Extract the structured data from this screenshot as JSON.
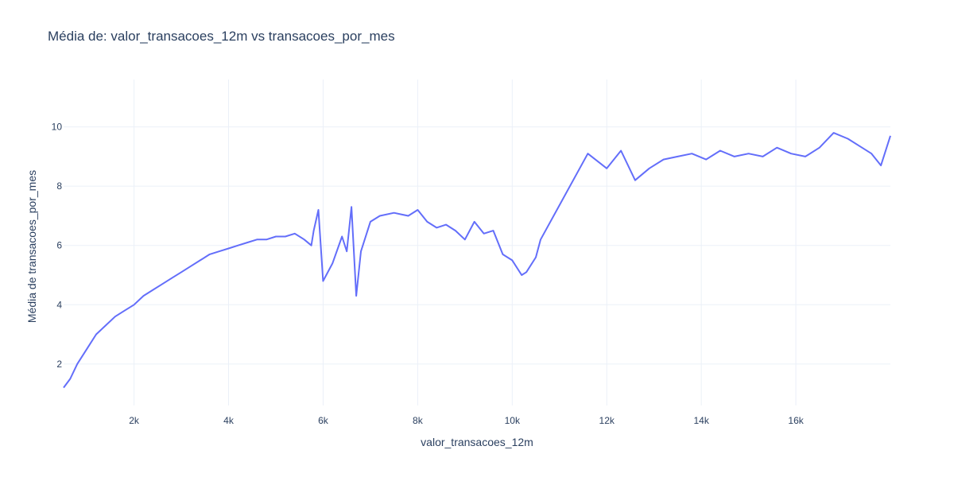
{
  "chart_data": {
    "type": "line",
    "title": "Média de: valor_transacoes_12m vs transacoes_por_mes",
    "xlabel": "valor_transacoes_12m",
    "ylabel": "Média de transacoes_por_mes",
    "xlim": [
      510,
      18000
    ],
    "ylim": [
      0.6,
      11.6
    ],
    "x_ticks": [
      2000,
      4000,
      6000,
      8000,
      10000,
      12000,
      14000,
      16000
    ],
    "x_tick_labels": [
      "2k",
      "4k",
      "6k",
      "8k",
      "10k",
      "12k",
      "14k",
      "16k"
    ],
    "y_ticks": [
      2,
      4,
      6,
      8,
      10
    ],
    "y_tick_labels": [
      "2",
      "4",
      "6",
      "8",
      "10"
    ],
    "grid": true,
    "legend": "none",
    "line_color": "#636efa",
    "series": [
      {
        "x": [
          510,
          650,
          800,
          1000,
          1200,
          1400,
          1600,
          1800,
          2000,
          2200,
          2400,
          2600,
          2800,
          3000,
          3200,
          3400,
          3600,
          3800,
          4000,
          4200,
          4400,
          4600,
          4800,
          5000,
          5200,
          5400,
          5600,
          5750,
          5800,
          5900,
          6000,
          6200,
          6400,
          6500,
          6600,
          6700,
          6800,
          7000,
          7200,
          7500,
          7800,
          8000,
          8200,
          8400,
          8600,
          8800,
          9000,
          9200,
          9400,
          9600,
          9800,
          10000,
          10200,
          10300,
          10500,
          10600,
          11600,
          12000,
          12300,
          12600,
          12900,
          13200,
          13500,
          13800,
          14100,
          14400,
          14700,
          15000,
          15300,
          15600,
          15900,
          16200,
          16500,
          16800,
          17100,
          17400,
          17600,
          17800,
          18000
        ],
        "y": [
          1.2,
          1.5,
          2.0,
          2.5,
          3.0,
          3.3,
          3.6,
          3.8,
          4.0,
          4.3,
          4.5,
          4.7,
          4.9,
          5.1,
          5.3,
          5.5,
          5.7,
          5.8,
          5.9,
          6.0,
          6.1,
          6.2,
          6.2,
          6.3,
          6.3,
          6.4,
          6.2,
          6.0,
          6.5,
          7.2,
          4.8,
          5.4,
          6.3,
          5.8,
          7.3,
          4.3,
          5.8,
          6.8,
          7.0,
          7.1,
          7.0,
          7.2,
          6.8,
          6.6,
          6.7,
          6.5,
          6.2,
          6.8,
          6.4,
          6.5,
          5.7,
          5.5,
          5.0,
          5.1,
          5.6,
          6.2,
          9.1,
          8.6,
          9.2,
          8.2,
          8.6,
          8.9,
          9.0,
          9.1,
          8.9,
          9.2,
          9.0,
          9.1,
          9.0,
          9.3,
          9.1,
          9.0,
          9.3,
          9.8,
          9.6,
          9.3,
          9.1,
          8.7,
          9.7
        ]
      }
    ]
  }
}
